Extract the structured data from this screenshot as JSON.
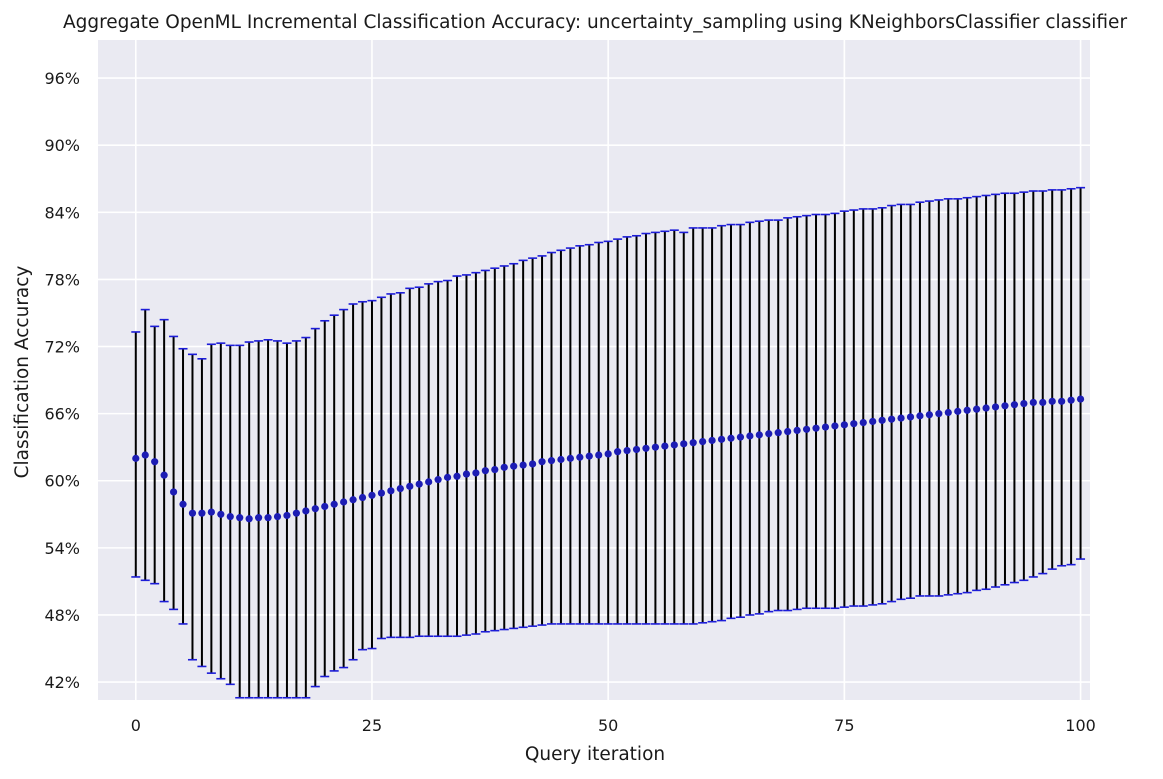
{
  "chart_data": {
    "type": "scatter",
    "title": "Aggregate OpenML Incremental Classification Accuracy: uncertainty_sampling using KNeighborsClassifier classifier",
    "xlabel": "Query iteration",
    "ylabel": "Classification Accuracy",
    "xlim": [
      -4,
      101
    ],
    "ylim": [
      0.404,
      0.994
    ],
    "grid": true,
    "xticks": [
      0,
      25,
      50,
      75,
      100
    ],
    "xtick_labels": [
      "0",
      "25",
      "50",
      "75",
      "100"
    ],
    "yticks": [
      0.42,
      0.48,
      0.54,
      0.6,
      0.66,
      0.72,
      0.78,
      0.84,
      0.9,
      0.96
    ],
    "ytick_labels": [
      "42%",
      "48%",
      "54%",
      "60%",
      "66%",
      "72%",
      "78%",
      "84%",
      "90%",
      "96%"
    ],
    "series": [
      {
        "x_start": 0,
        "mean": [
          0.62,
          0.623,
          0.617,
          0.605,
          0.59,
          0.579,
          0.571,
          0.571,
          0.572,
          0.57,
          0.568,
          0.567,
          0.566,
          0.567,
          0.567,
          0.568,
          0.569,
          0.571,
          0.573,
          0.575,
          0.577,
          0.579,
          0.581,
          0.583,
          0.585,
          0.587,
          0.589,
          0.591,
          0.593,
          0.595,
          0.597,
          0.599,
          0.601,
          0.603,
          0.604,
          0.606,
          0.607,
          0.609,
          0.61,
          0.612,
          0.613,
          0.614,
          0.615,
          0.617,
          0.618,
          0.619,
          0.62,
          0.621,
          0.622,
          0.623,
          0.624,
          0.626,
          0.627,
          0.628,
          0.629,
          0.63,
          0.631,
          0.632,
          0.633,
          0.634,
          0.635,
          0.636,
          0.637,
          0.638,
          0.639,
          0.64,
          0.641,
          0.642,
          0.643,
          0.644,
          0.645,
          0.646,
          0.647,
          0.648,
          0.649,
          0.65,
          0.651,
          0.652,
          0.653,
          0.654,
          0.655,
          0.656,
          0.657,
          0.658,
          0.659,
          0.66,
          0.661,
          0.662,
          0.663,
          0.664,
          0.665,
          0.666,
          0.667,
          0.668,
          0.669,
          0.67,
          0.67,
          0.671,
          0.671,
          0.672,
          0.673
        ],
        "upper": [
          0.733,
          0.753,
          0.738,
          0.744,
          0.729,
          0.718,
          0.713,
          0.709,
          0.722,
          0.723,
          0.721,
          0.721,
          0.724,
          0.725,
          0.726,
          0.725,
          0.723,
          0.725,
          0.728,
          0.736,
          0.743,
          0.748,
          0.753,
          0.758,
          0.76,
          0.761,
          0.764,
          0.767,
          0.768,
          0.772,
          0.773,
          0.776,
          0.778,
          0.779,
          0.783,
          0.784,
          0.786,
          0.788,
          0.79,
          0.792,
          0.794,
          0.797,
          0.799,
          0.801,
          0.804,
          0.806,
          0.808,
          0.81,
          0.811,
          0.813,
          0.814,
          0.816,
          0.818,
          0.819,
          0.821,
          0.822,
          0.823,
          0.824,
          0.822,
          0.826,
          0.826,
          0.826,
          0.828,
          0.829,
          0.829,
          0.831,
          0.832,
          0.833,
          0.833,
          0.835,
          0.836,
          0.837,
          0.838,
          0.838,
          0.839,
          0.841,
          0.842,
          0.843,
          0.843,
          0.844,
          0.846,
          0.847,
          0.847,
          0.849,
          0.85,
          0.851,
          0.852,
          0.852,
          0.853,
          0.854,
          0.855,
          0.856,
          0.857,
          0.857,
          0.858,
          0.859,
          0.859,
          0.86,
          0.86,
          0.861,
          0.862
        ],
        "lower": [
          0.514,
          0.511,
          0.508,
          0.492,
          0.485,
          0.472,
          0.44,
          0.434,
          0.428,
          0.423,
          0.418,
          0.406,
          0.406,
          0.406,
          0.406,
          0.406,
          0.406,
          0.406,
          0.406,
          0.416,
          0.425,
          0.43,
          0.433,
          0.44,
          0.449,
          0.45,
          0.459,
          0.46,
          0.46,
          0.46,
          0.461,
          0.461,
          0.461,
          0.461,
          0.461,
          0.462,
          0.463,
          0.465,
          0.466,
          0.467,
          0.468,
          0.469,
          0.47,
          0.471,
          0.472,
          0.472,
          0.472,
          0.472,
          0.472,
          0.472,
          0.472,
          0.472,
          0.472,
          0.472,
          0.472,
          0.472,
          0.472,
          0.472,
          0.472,
          0.472,
          0.473,
          0.474,
          0.475,
          0.477,
          0.478,
          0.48,
          0.481,
          0.483,
          0.484,
          0.484,
          0.485,
          0.486,
          0.486,
          0.486,
          0.486,
          0.487,
          0.488,
          0.488,
          0.489,
          0.49,
          0.492,
          0.494,
          0.495,
          0.497,
          0.497,
          0.497,
          0.498,
          0.499,
          0.5,
          0.502,
          0.503,
          0.505,
          0.507,
          0.509,
          0.511,
          0.514,
          0.517,
          0.521,
          0.524,
          0.525,
          0.53
        ]
      }
    ],
    "colors": {
      "plot_background": "#eaeaf2",
      "grid": "#ffffff",
      "marker": "#1c1cb4",
      "error_bar": "#000000",
      "cap": "#1c1cd8"
    }
  }
}
